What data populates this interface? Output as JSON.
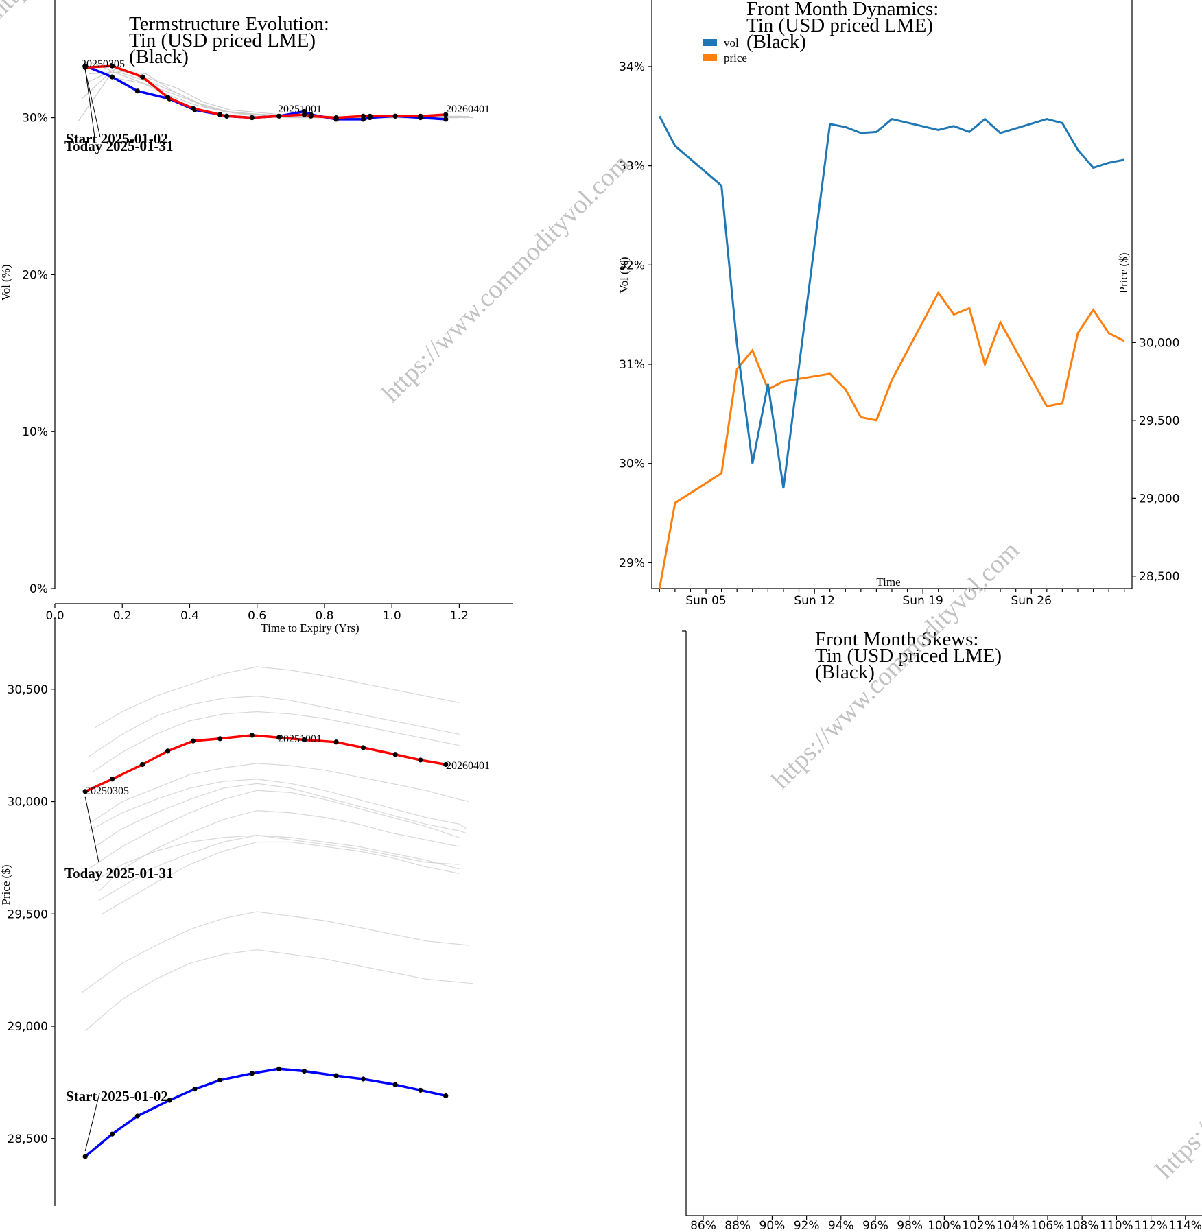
{
  "watermark": "https://www.commodityvol.com",
  "chart_data": [
    {
      "id": "term",
      "type": "line",
      "title": [
        "Termstructure Evolution:",
        "Tin (USD priced LME)",
        "(Black)"
      ],
      "xlabel": "Time to Expiry (Yrs)",
      "ylabel": "Vol (%)",
      "xlim": [
        0,
        1.36
      ],
      "ylim": [
        0,
        37.5
      ],
      "x_ticks": [
        "0.0",
        "0.2",
        "0.4",
        "0.6",
        "0.8",
        "1.0",
        "1.2"
      ],
      "y_ticks": [
        "0%",
        "10%",
        "20%",
        "30%"
      ],
      "grid": false,
      "annotations": {
        "start": "Start 2025-01-02",
        "today": "Today 2025-01-31",
        "labels": [
          "20250305",
          "20251001",
          "20260401"
        ]
      },
      "series": [
        {
          "color": "#0000ff",
          "role": "start",
          "x": [
            0.09,
            0.17,
            0.245,
            0.34,
            0.415,
            0.49,
            0.51,
            0.585,
            0.665,
            0.74,
            0.76,
            0.835,
            0.915,
            0.935,
            1.01,
            1.085,
            1.16
          ],
          "y": [
            33.3,
            32.6,
            31.7,
            31.2,
            30.5,
            30.2,
            30.1,
            30.0,
            30.1,
            30.4,
            30.2,
            29.9,
            29.9,
            30.0,
            30.1,
            30.0,
            29.9
          ]
        },
        {
          "color": "#ff0000",
          "role": "today",
          "x": [
            0.09,
            0.17,
            0.26,
            0.335,
            0.41,
            0.49,
            0.51,
            0.585,
            0.665,
            0.74,
            0.76,
            0.835,
            0.915,
            0.935,
            1.01,
            1.085,
            1.16
          ],
          "y": [
            33.2,
            33.3,
            32.6,
            31.3,
            30.6,
            30.2,
            30.1,
            30.0,
            30.1,
            30.2,
            30.1,
            30.0,
            30.1,
            30.1,
            30.1,
            30.1,
            30.2
          ]
        },
        {
          "color": "#cccccc",
          "x": [
            0.07,
            0.16,
            0.26,
            0.34,
            0.42,
            0.5,
            0.6,
            0.7,
            0.8,
            0.9,
            1.0,
            1.1,
            1.2
          ],
          "y": [
            29.8,
            32.6,
            32.2,
            31.4,
            30.8,
            30.4,
            30.1,
            30.0,
            30.0,
            30.0,
            30.1,
            30.0,
            30.0
          ]
        },
        {
          "color": "#cccccc",
          "x": [
            0.08,
            0.17,
            0.27,
            0.35,
            0.43,
            0.51,
            0.61,
            0.71,
            0.81,
            0.91,
            1.01,
            1.11,
            1.21
          ],
          "y": [
            31.2,
            33.0,
            32.8,
            31.7,
            30.9,
            30.4,
            30.2,
            30.1,
            30.0,
            30.0,
            30.0,
            30.1,
            30.1
          ]
        },
        {
          "color": "#cccccc",
          "x": [
            0.09,
            0.18,
            0.28,
            0.36,
            0.44,
            0.52,
            0.62,
            0.72,
            0.82,
            0.92,
            1.02,
            1.12,
            1.22
          ],
          "y": [
            32.2,
            33.1,
            32.5,
            31.9,
            31.0,
            30.5,
            30.3,
            30.1,
            30.1,
            30.0,
            30.1,
            30.1,
            30.0
          ]
        },
        {
          "color": "#cccccc",
          "x": [
            0.1,
            0.19,
            0.29,
            0.37,
            0.45,
            0.53,
            0.63,
            0.73,
            0.83,
            0.93,
            1.03,
            1.13,
            1.23
          ],
          "y": [
            32.8,
            32.9,
            32.2,
            31.5,
            30.7,
            30.3,
            30.2,
            30.1,
            30.0,
            30.1,
            30.0,
            30.0,
            30.1
          ]
        },
        {
          "color": "#cccccc",
          "x": [
            0.11,
            0.2,
            0.3,
            0.38,
            0.46,
            0.54,
            0.64,
            0.74,
            0.84,
            0.94,
            1.04,
            1.14,
            1.24
          ],
          "y": [
            33.5,
            32.7,
            31.9,
            31.3,
            30.6,
            30.3,
            30.1,
            30.0,
            30.0,
            30.0,
            30.0,
            30.1,
            30.0
          ]
        }
      ]
    },
    {
      "id": "dynamics",
      "type": "line",
      "title": [
        "Front Month Dynamics:",
        "Tin (USD priced LME)",
        "(Black)"
      ],
      "xlabel": "Time",
      "ylabel": "Vol (%)",
      "ylabel_right": "Price ($)",
      "xlim": [
        1.5,
        32.5
      ],
      "ylim": [
        28.74,
        34.67
      ],
      "ylim_right": [
        28420,
        32200
      ],
      "x_tick_values": [
        5,
        12,
        19,
        26
      ],
      "x_ticks": [
        "Sun 05",
        "Sun 12",
        "Sun 19",
        "Sun 26"
      ],
      "y_tick_values": [
        29,
        30,
        31,
        32,
        33,
        34
      ],
      "y_ticks": [
        "29%",
        "30%",
        "31%",
        "32%",
        "33%",
        "34%"
      ],
      "y_tick_values_right": [
        28500,
        29000,
        29500,
        30000
      ],
      "y_ticks_right": [
        "28,500",
        "29,000",
        "29,500",
        "30,000"
      ],
      "legend": {
        "placement": "top-left"
      },
      "series": [
        {
          "name": "vol",
          "color": "#1f77b4",
          "axis": "left",
          "x": [
            2,
            3,
            6,
            7,
            8,
            9,
            10,
            13,
            14,
            15,
            16,
            17,
            20,
            21,
            22,
            23,
            24,
            27,
            28,
            29,
            30,
            31,
            32
          ],
          "y": [
            33.5,
            33.2,
            32.8,
            31.2,
            30.0,
            30.8,
            29.75,
            33.42,
            33.39,
            33.33,
            33.34,
            33.47,
            33.36,
            33.4,
            33.34,
            33.47,
            33.33,
            33.47,
            33.43,
            33.16,
            32.98,
            33.03,
            33.06
          ]
        },
        {
          "name": "price",
          "color": "#ff7f0e",
          "axis": "right",
          "x": [
            2,
            3,
            6,
            7,
            8,
            9,
            10,
            13,
            14,
            15,
            16,
            17,
            20,
            21,
            22,
            23,
            24,
            27,
            28,
            29,
            30,
            31,
            32
          ],
          "y": [
            28420,
            28970,
            29160,
            29830,
            29950,
            29700,
            29750,
            29800,
            29700,
            29520,
            29500,
            29760,
            30320,
            30180,
            30220,
            29860,
            30130,
            29590,
            29610,
            30060,
            30210,
            30060,
            30010
          ]
        }
      ]
    },
    {
      "id": "price_term",
      "type": "line",
      "title": [],
      "xlabel": "",
      "ylabel": "Price ($)",
      "xlim": [
        0,
        1.36
      ],
      "ylim": [
        28200,
        30820
      ],
      "y_tick_values": [
        28500,
        29000,
        29500,
        30000,
        30500
      ],
      "y_ticks": [
        "28,500",
        "29,000",
        "29,500",
        "30,000",
        "30,500"
      ],
      "annotations": {
        "start": "Start 2025-01-02",
        "today": "Today 2025-01-31",
        "labels": [
          "20250305",
          "20251001",
          "20260401"
        ]
      },
      "series": [
        {
          "color": "#0000ff",
          "role": "start",
          "x": [
            0.09,
            0.17,
            0.245,
            0.34,
            0.415,
            0.49,
            0.585,
            0.665,
            0.74,
            0.835,
            0.915,
            1.01,
            1.085,
            1.16
          ],
          "y": [
            28420,
            28520,
            28600,
            28670,
            28720,
            28760,
            28790,
            28810,
            28800,
            28780,
            28765,
            28740,
            28715,
            28690
          ]
        },
        {
          "color": "#ff0000",
          "role": "today",
          "x": [
            0.09,
            0.17,
            0.26,
            0.335,
            0.41,
            0.49,
            0.585,
            0.665,
            0.74,
            0.835,
            0.915,
            1.01,
            1.085,
            1.16
          ],
          "y": [
            30045,
            30100,
            30165,
            30225,
            30270,
            30280,
            30295,
            30285,
            30275,
            30265,
            30240,
            30210,
            30185,
            30165
          ]
        },
        {
          "color": "#d8d8d8",
          "x": [
            0.12,
            0.2,
            0.3,
            0.4,
            0.5,
            0.6,
            0.7,
            0.8,
            0.9,
            1.0,
            1.1,
            1.2
          ],
          "y": [
            30330,
            30400,
            30470,
            30520,
            30570,
            30600,
            30585,
            30560,
            30530,
            30500,
            30470,
            30440
          ]
        },
        {
          "color": "#d8d8d8",
          "x": [
            0.1,
            0.2,
            0.3,
            0.4,
            0.5,
            0.6,
            0.7,
            0.8,
            0.9,
            1.0,
            1.1,
            1.2
          ],
          "y": [
            30200,
            30300,
            30380,
            30430,
            30460,
            30470,
            30450,
            30420,
            30390,
            30360,
            30330,
            30300
          ]
        },
        {
          "color": "#d8d8d8",
          "x": [
            0.11,
            0.2,
            0.3,
            0.4,
            0.5,
            0.6,
            0.7,
            0.8,
            0.9,
            1.0,
            1.1,
            1.2
          ],
          "y": [
            30130,
            30220,
            30300,
            30360,
            30390,
            30400,
            30390,
            30370,
            30340,
            30310,
            30280,
            30250
          ]
        },
        {
          "color": "#d8d8d8",
          "x": [
            0.1,
            0.2,
            0.3,
            0.4,
            0.5,
            0.6,
            0.7,
            0.8,
            0.9,
            1.0,
            1.1,
            1.2,
            1.23
          ],
          "y": [
            29900,
            30000,
            30060,
            30120,
            30150,
            30170,
            30160,
            30140,
            30110,
            30080,
            30050,
            30010,
            30000
          ]
        },
        {
          "color": "#d8d8d8",
          "x": [
            0.1,
            0.2,
            0.3,
            0.4,
            0.5,
            0.6,
            0.7,
            0.8,
            0.9,
            1.0,
            1.1,
            1.2,
            1.22
          ],
          "y": [
            29870,
            29950,
            30010,
            30060,
            30090,
            30100,
            30080,
            30050,
            30010,
            29970,
            29930,
            29900,
            29880
          ]
        },
        {
          "color": "#d8d8d8",
          "x": [
            0.12,
            0.2,
            0.3,
            0.4,
            0.5,
            0.6,
            0.7,
            0.8,
            0.9,
            1.0,
            1.1,
            1.2,
            1.22
          ],
          "y": [
            29800,
            29880,
            29950,
            30010,
            30060,
            30080,
            30060,
            30020,
            29980,
            29940,
            29900,
            29870,
            29860
          ]
        },
        {
          "color": "#d8d8d8",
          "x": [
            0.1,
            0.2,
            0.3,
            0.4,
            0.5,
            0.6,
            0.7,
            0.8,
            0.9,
            1.0,
            1.1,
            1.2
          ],
          "y": [
            29700,
            29800,
            29880,
            29950,
            30010,
            30050,
            30040,
            30010,
            29970,
            29930,
            29890,
            29840
          ]
        },
        {
          "color": "#d8d8d8",
          "x": [
            0.13,
            0.2,
            0.3,
            0.4,
            0.5,
            0.6,
            0.7,
            0.8,
            0.9,
            1.0,
            1.1,
            1.2
          ],
          "y": [
            29600,
            29700,
            29790,
            29860,
            29920,
            29960,
            29950,
            29930,
            29900,
            29860,
            29830,
            29800
          ]
        },
        {
          "color": "#d8d8d8",
          "x": [
            0.14,
            0.22,
            0.3,
            0.4,
            0.5,
            0.6,
            0.7,
            0.8,
            0.9,
            1.0,
            1.1,
            1.2
          ],
          "y": [
            29500,
            29570,
            29640,
            29720,
            29780,
            29820,
            29820,
            29800,
            29780,
            29750,
            29710,
            29680
          ]
        },
        {
          "color": "#d8d8d8",
          "x": [
            0.13,
            0.22,
            0.3,
            0.4,
            0.5,
            0.6,
            0.7,
            0.8,
            0.9,
            1.0,
            1.1,
            1.2
          ],
          "y": [
            29560,
            29640,
            29710,
            29770,
            29820,
            29850,
            29840,
            29820,
            29800,
            29770,
            29740,
            29700
          ]
        },
        {
          "color": "#d8d8d8",
          "x": [
            0.11,
            0.2,
            0.3,
            0.4,
            0.5,
            0.6,
            0.7,
            0.8,
            0.9,
            1.0,
            1.1,
            1.2
          ],
          "y": [
            29640,
            29720,
            29780,
            29820,
            29840,
            29850,
            29830,
            29810,
            29790,
            29760,
            29730,
            29720
          ]
        },
        {
          "color": "#d8d8d8",
          "x": [
            0.08,
            0.2,
            0.3,
            0.4,
            0.5,
            0.6,
            0.7,
            0.8,
            0.9,
            1.0,
            1.1,
            1.23
          ],
          "y": [
            29150,
            29280,
            29360,
            29430,
            29480,
            29510,
            29490,
            29470,
            29440,
            29410,
            29380,
            29360
          ]
        },
        {
          "color": "#d8d8d8",
          "x": [
            0.09,
            0.2,
            0.3,
            0.4,
            0.5,
            0.6,
            0.7,
            0.8,
            0.9,
            1.0,
            1.1,
            1.24
          ],
          "y": [
            28980,
            29120,
            29210,
            29280,
            29320,
            29340,
            29320,
            29300,
            29270,
            29240,
            29210,
            29190
          ]
        }
      ]
    },
    {
      "id": "skews",
      "type": "line",
      "title": [
        "Front Month Skews:",
        "Tin (USD priced LME)",
        "(Black)"
      ],
      "xlabel": "",
      "ylabel": "",
      "x_ticks": [
        "86%",
        "88%",
        "90%",
        "92%",
        "94%",
        "96%",
        "98%",
        "100%",
        "102%",
        "104%",
        "106%",
        "108%",
        "110%",
        "112%",
        "114%"
      ],
      "series": []
    }
  ]
}
